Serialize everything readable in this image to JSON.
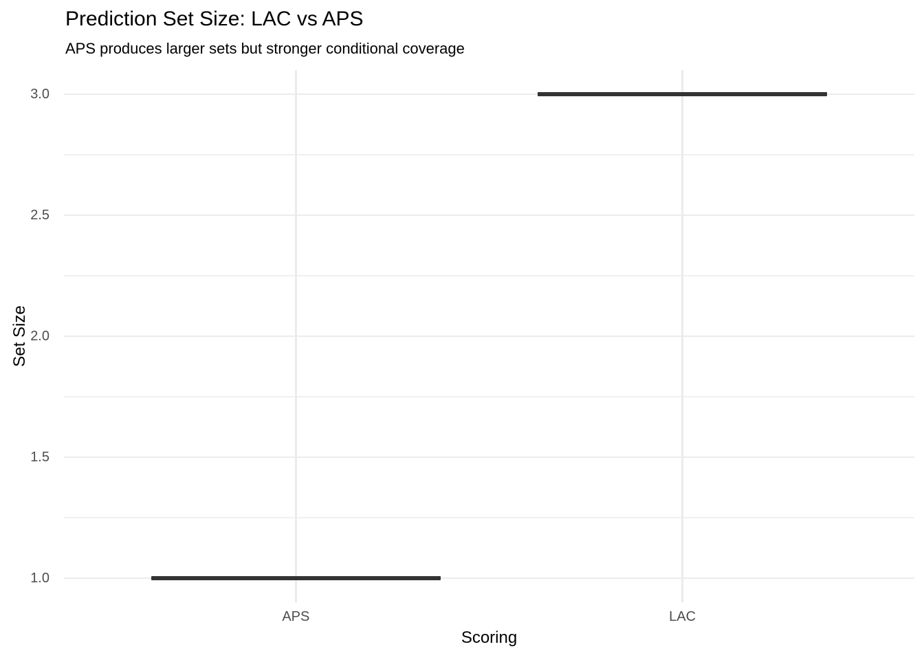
{
  "chart_data": {
    "type": "boxplot",
    "title": "Prediction Set Size: LAC vs APS",
    "subtitle": "APS produces larger sets but stronger conditional coverage",
    "xlabel": "Scoring",
    "ylabel": "Set Size",
    "categories": [
      "APS",
      "LAC"
    ],
    "values": [
      1.0,
      3.0
    ],
    "y_major_ticks": [
      3.0,
      2.5,
      2.0,
      1.5,
      1.0
    ],
    "y_tick_labels": [
      "3.0",
      "2.5",
      "2.0",
      "1.5",
      "1.0"
    ],
    "y_minor_ticks": [
      2.75,
      2.25,
      1.75,
      1.25
    ],
    "ylim": [
      0.9,
      3.1
    ],
    "x_expand": 0.6,
    "bar_width_fraction": 0.75,
    "grid": true,
    "legend": "none",
    "colors": {
      "bar": "#333333",
      "grid_major": "#EBEBEB",
      "grid_minor": "#F0F0F0",
      "tick_label": "#4D4D4D",
      "title": "#000000",
      "axis_title": "#000000",
      "background": "#FFFFFF"
    }
  }
}
